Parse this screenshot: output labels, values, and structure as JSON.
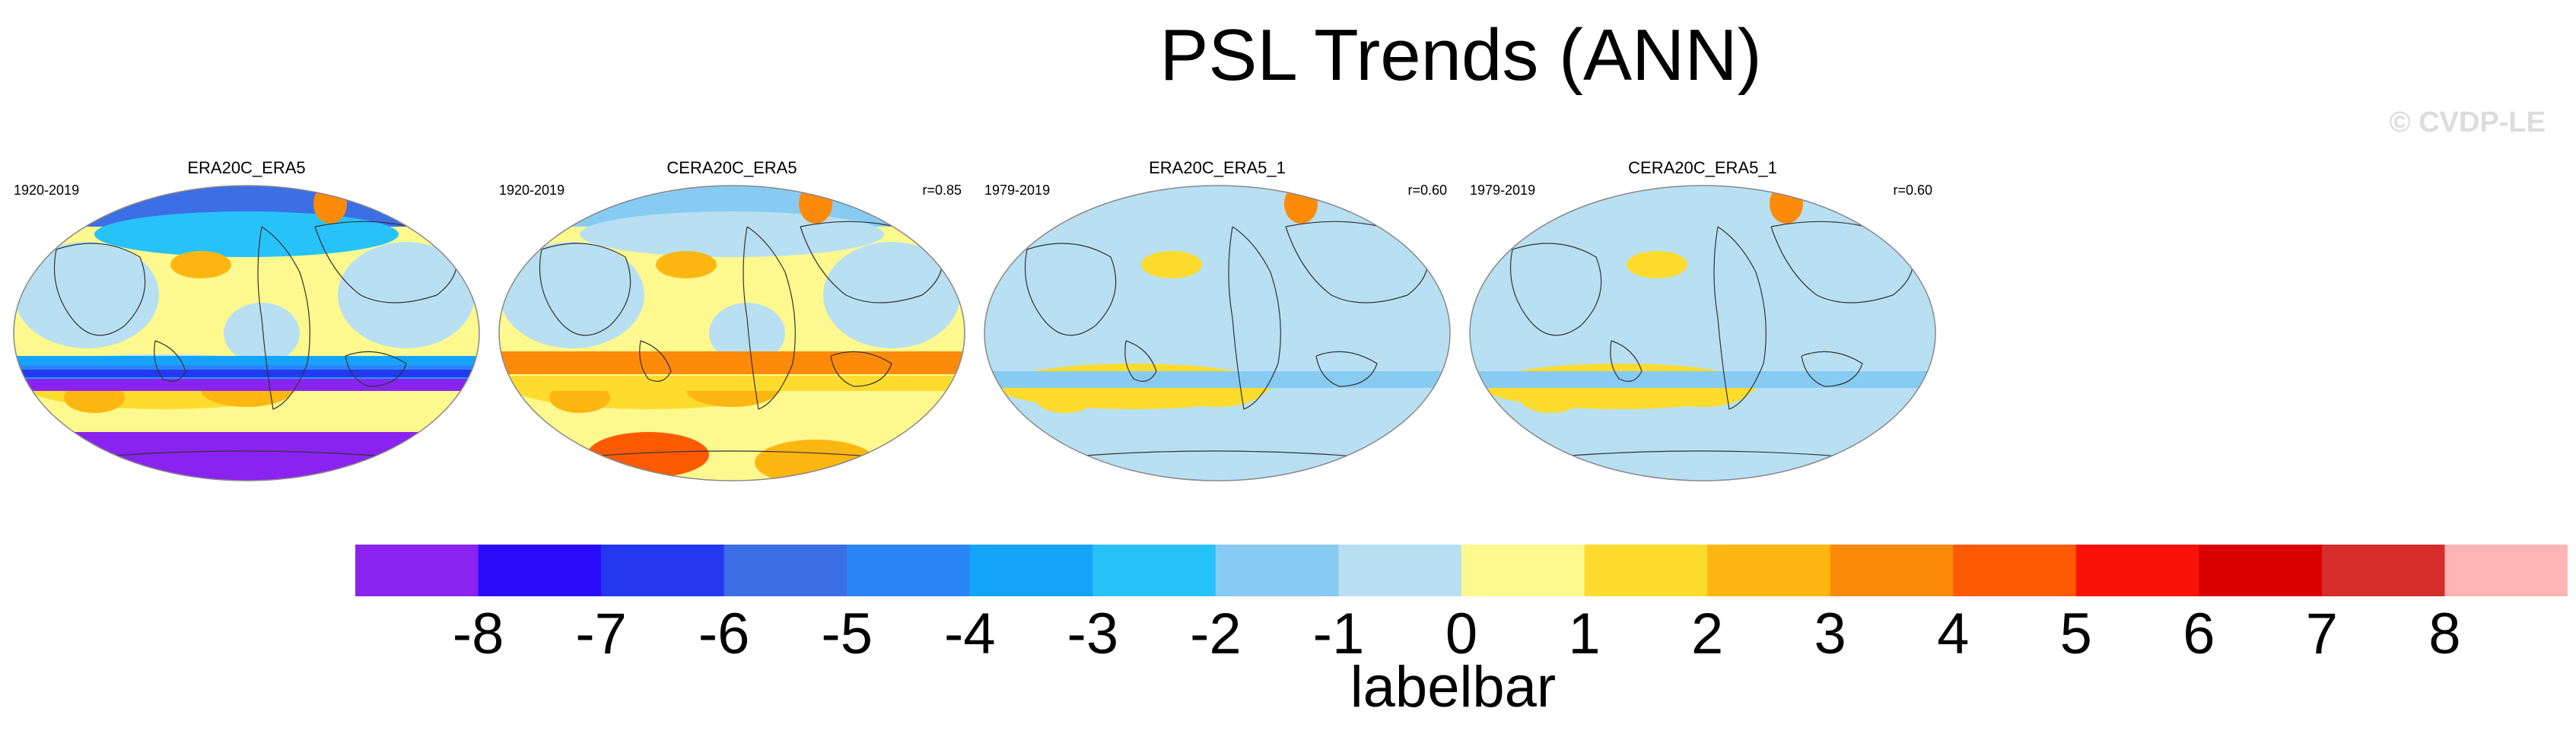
{
  "title": "PSL Trends (ANN)",
  "watermark": "© CVDP-LE",
  "chart_data": {
    "type": "heatmap",
    "description_variable": "PSL trend, annual",
    "panels": [
      {
        "name": "ERA20C_ERA5",
        "period": "1920-2019",
        "r": "",
        "style": "era20c"
      },
      {
        "name": "CERA20C_ERA5",
        "period": "1920-2019",
        "r": "r=0.85",
        "style": "cera20c"
      },
      {
        "name": "ERA20C_ERA5_1",
        "period": "1979-2019",
        "r": "r=0.60",
        "style": "recent"
      },
      {
        "name": "CERA20C_ERA5_1",
        "period": "1979-2019",
        "r": "r=0.60",
        "style": "recent"
      }
    ],
    "colorbar": {
      "label": "labelbar",
      "ticks": [
        "-8",
        "-7",
        "-6",
        "-5",
        "-4",
        "-3",
        "-2",
        "-1",
        "0",
        "1",
        "2",
        "3",
        "4",
        "5",
        "6",
        "7",
        "8"
      ],
      "colors": [
        "#8a23f0",
        "#2a0cfa",
        "#2438f0",
        "#3c6ee6",
        "#2a86f6",
        "#14a4fa",
        "#28c2fa",
        "#88cbf2",
        "#b8e0f2",
        "#fdf98e",
        "#fedc2e",
        "#feb611",
        "#fe8a0a",
        "#fe5a04",
        "#fa1209",
        "#da0000",
        "#d62c2c",
        "#feb4b4"
      ]
    }
  }
}
